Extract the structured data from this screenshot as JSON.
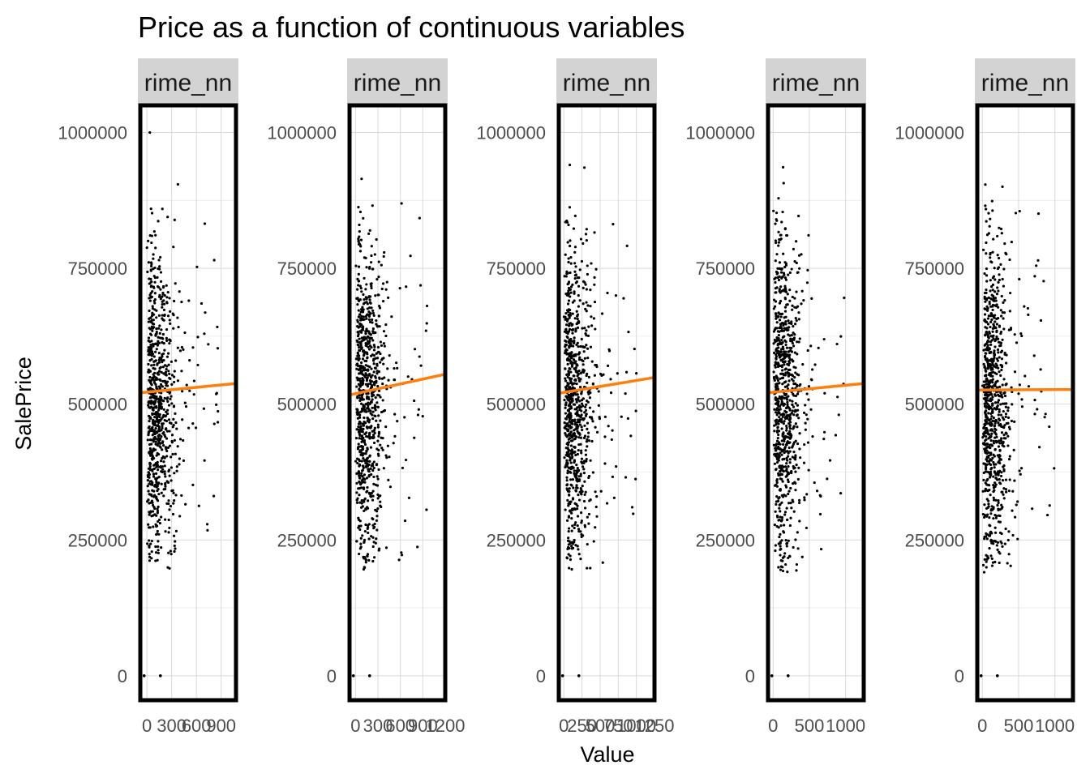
{
  "chart_data": {
    "type": "scatter",
    "title": "Price as a function of continuous variables",
    "xlabel": "Value",
    "ylabel": "SalePrice",
    "y_ticks": [
      0,
      250000,
      500000,
      750000,
      1000000
    ],
    "y_tick_labels": [
      "0",
      "250000",
      "500000",
      "750000",
      "1000000"
    ],
    "ylim": [
      -45000,
      1050000
    ],
    "grid": true,
    "legend": "none",
    "point_color": "#000000",
    "trend_color": "#ff7f0e",
    "frame_color": "#000000",
    "strip_fill": "#d3d3d3",
    "panels": [
      {
        "strip_label": "rime_nn",
        "xlim": [
          -80,
          1080
        ],
        "x_ticks": [
          0,
          300,
          600,
          900
        ],
        "x_tick_labels": [
          "0",
          "300",
          "600",
          "900"
        ],
        "trend": {
          "x0": -80,
          "y0": 521000,
          "x1": 1080,
          "y1": 538000
        },
        "seed": 11
      },
      {
        "strip_label": "rime_nn",
        "xlim": [
          -80,
          1200
        ],
        "x_ticks": [
          0,
          300,
          600,
          900,
          1200
        ],
        "x_tick_labels": [
          "0",
          "300",
          "600",
          "900",
          "1200"
        ],
        "trend": {
          "x0": -80,
          "y0": 517000,
          "x1": 1200,
          "y1": 555000
        },
        "seed": 23
      },
      {
        "strip_label": "rime_nn",
        "xlim": [
          -70,
          1250
        ],
        "x_ticks": [
          0,
          250,
          500,
          750,
          1000,
          1250
        ],
        "x_tick_labels": [
          "0",
          "250",
          "500",
          "750",
          "1000",
          "1250"
        ],
        "trend": {
          "x0": -70,
          "y0": 520000,
          "x1": 1250,
          "y1": 549000
        },
        "seed": 37
      },
      {
        "strip_label": "rime_nn",
        "xlim": [
          -70,
          1250
        ],
        "x_ticks": [
          0,
          500,
          1000
        ],
        "x_tick_labels": [
          "0",
          "500",
          "1000"
        ],
        "trend": {
          "x0": -70,
          "y0": 521000,
          "x1": 1250,
          "y1": 538000
        },
        "seed": 41
      },
      {
        "strip_label": "rime_nn",
        "xlim": [
          -70,
          1250
        ],
        "x_ticks": [
          0,
          500,
          1000
        ],
        "x_tick_labels": [
          "0",
          "500",
          "1000"
        ],
        "trend": {
          "x0": -70,
          "y0": 526000,
          "x1": 1250,
          "y1": 527000
        },
        "seed": 53
      }
    ]
  }
}
